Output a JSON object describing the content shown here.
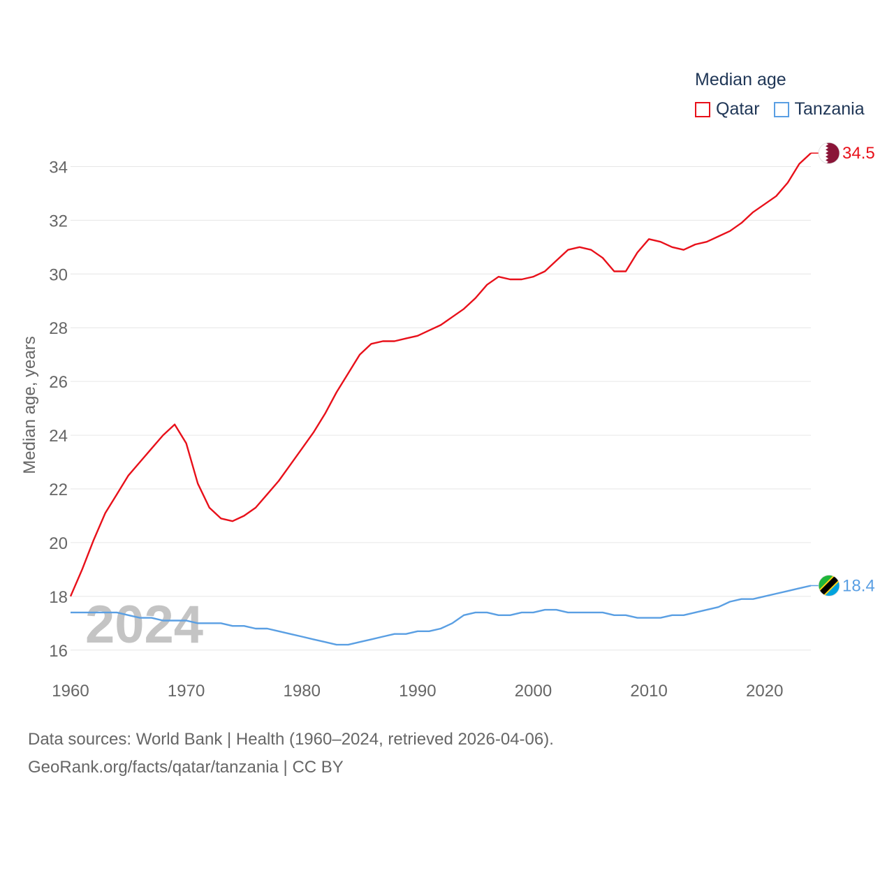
{
  "legend": {
    "title": "Median age",
    "items": [
      {
        "name": "Qatar",
        "color": "#e8101a"
      },
      {
        "name": "Tanzania",
        "color": "#5a9fe3"
      }
    ]
  },
  "year_watermark": "2024",
  "footer": {
    "line1": "Data sources: World Bank | Health (1960–2024, retrieved 2026-04-06).",
    "line2": "GeoRank.org/facts/qatar/tanzania | CC BY"
  },
  "chart_data": {
    "type": "line",
    "title": "Median age",
    "xlabel": "",
    "ylabel": "Median age, years",
    "xlim": [
      1960,
      2024
    ],
    "ylim": [
      15.5,
      35
    ],
    "xticks": [
      1960,
      1970,
      1980,
      1990,
      2000,
      2010,
      2020
    ],
    "yticks": [
      16,
      18,
      20,
      22,
      24,
      26,
      28,
      30,
      32,
      34
    ],
    "grid": true,
    "x": [
      1960,
      1961,
      1962,
      1963,
      1964,
      1965,
      1966,
      1967,
      1968,
      1969,
      1970,
      1971,
      1972,
      1973,
      1974,
      1975,
      1976,
      1977,
      1978,
      1979,
      1980,
      1981,
      1982,
      1983,
      1984,
      1985,
      1986,
      1987,
      1988,
      1989,
      1990,
      1991,
      1992,
      1993,
      1994,
      1995,
      1996,
      1997,
      1998,
      1999,
      2000,
      2001,
      2002,
      2003,
      2004,
      2005,
      2006,
      2007,
      2008,
      2009,
      2010,
      2011,
      2012,
      2013,
      2014,
      2015,
      2016,
      2017,
      2018,
      2019,
      2020,
      2021,
      2022,
      2023,
      2024
    ],
    "series": [
      {
        "name": "Qatar",
        "color": "#e8101a",
        "end_label": "34.5",
        "values": [
          18.0,
          19.0,
          20.1,
          21.1,
          21.8,
          22.5,
          23.0,
          23.5,
          24.0,
          24.4,
          23.7,
          22.2,
          21.3,
          20.9,
          20.8,
          21.0,
          21.3,
          21.8,
          22.3,
          22.9,
          23.5,
          24.1,
          24.8,
          25.6,
          26.3,
          27.0,
          27.4,
          27.5,
          27.5,
          27.6,
          27.7,
          27.9,
          28.1,
          28.4,
          28.7,
          29.1,
          29.6,
          29.9,
          29.8,
          29.8,
          29.9,
          30.1,
          30.5,
          30.9,
          31.0,
          30.9,
          30.6,
          30.1,
          30.1,
          30.8,
          31.3,
          31.2,
          31.0,
          30.9,
          31.1,
          31.2,
          31.4,
          31.6,
          31.9,
          32.3,
          32.6,
          32.9,
          33.4,
          34.1,
          34.5
        ]
      },
      {
        "name": "Tanzania",
        "color": "#5a9fe3",
        "end_label": "18.4",
        "values": [
          17.4,
          17.4,
          17.4,
          17.4,
          17.4,
          17.3,
          17.2,
          17.2,
          17.1,
          17.1,
          17.1,
          17.0,
          17.0,
          17.0,
          16.9,
          16.9,
          16.8,
          16.8,
          16.7,
          16.6,
          16.5,
          16.4,
          16.3,
          16.2,
          16.2,
          16.3,
          16.4,
          16.5,
          16.6,
          16.6,
          16.7,
          16.7,
          16.8,
          17.0,
          17.3,
          17.4,
          17.4,
          17.3,
          17.3,
          17.4,
          17.4,
          17.5,
          17.5,
          17.4,
          17.4,
          17.4,
          17.4,
          17.3,
          17.3,
          17.2,
          17.2,
          17.2,
          17.3,
          17.3,
          17.4,
          17.5,
          17.6,
          17.8,
          17.9,
          17.9,
          18.0,
          18.1,
          18.2,
          18.3,
          18.4
        ]
      }
    ]
  }
}
